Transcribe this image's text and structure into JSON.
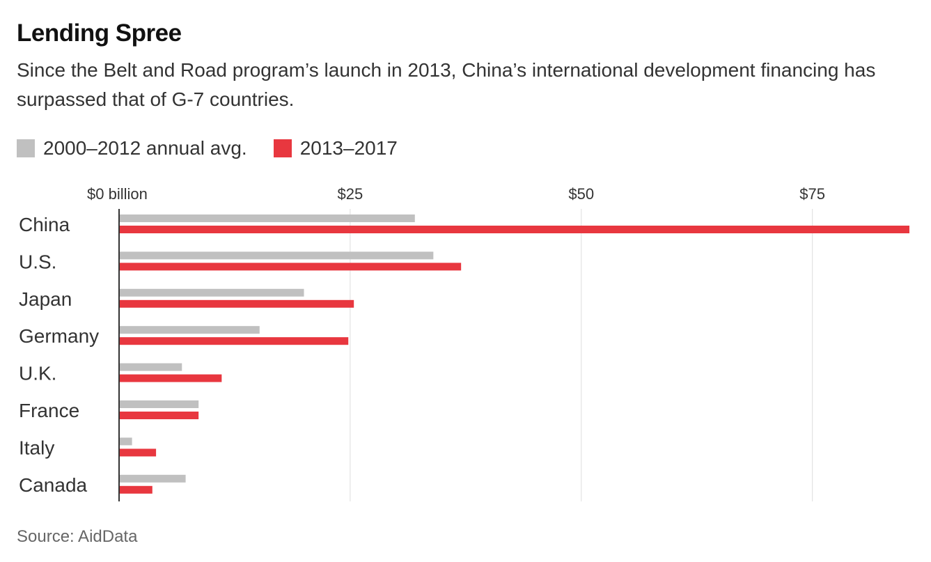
{
  "chart_data": {
    "type": "bar",
    "orientation": "horizontal",
    "title": "Lending Spree",
    "subtitle": "Since the Belt and Road program’s launch in 2013, China’s international development financing has surpassed that of G-7 countries.",
    "categories": [
      "China",
      "U.S.",
      "Japan",
      "Germany",
      "U.K.",
      "France",
      "Italy",
      "Canada"
    ],
    "series": [
      {
        "name": "2000–2012 annual avg.",
        "color": "#c0c0c0",
        "values": [
          32,
          34,
          20,
          15.2,
          6.8,
          8.6,
          1.4,
          7.2
        ]
      },
      {
        "name": "2013–2017",
        "color": "#e8373f",
        "values": [
          85.5,
          37,
          25.4,
          24.8,
          11.1,
          8.6,
          4,
          3.6
        ]
      }
    ],
    "xlim": [
      0,
      85.5
    ],
    "ticks": [
      {
        "value": 0,
        "label": "$0 billion"
      },
      {
        "value": 25,
        "label": "$25"
      },
      {
        "value": 50,
        "label": "$50"
      },
      {
        "value": 75,
        "label": "$75"
      }
    ],
    "grid": true,
    "legend_position": "top-left",
    "source": "Source: AidData"
  }
}
